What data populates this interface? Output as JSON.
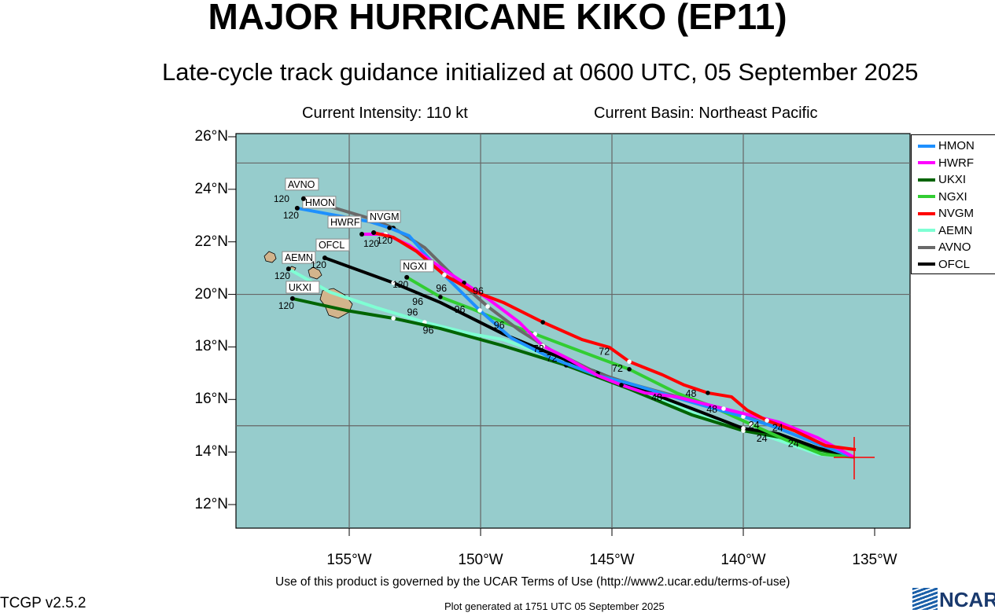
{
  "header": {
    "title": "MAJOR HURRICANE KIKO (EP11)",
    "subtitle": "Late-cycle track guidance initialized at 0600 UTC, 05 September 2025",
    "intensity": "Current Intensity: 110 kt",
    "basin": "Current Basin: Northeast Pacific"
  },
  "footer": {
    "terms": "Use of this product is governed by the UCAR Terms of Use (http://www2.ucar.edu/terms-of-use)",
    "version": "TCGP v2.5.2",
    "generated": "Plot generated at 1751 UTC   05 September 2025",
    "logo": "NCAR"
  },
  "chart_data": {
    "type": "line",
    "xlim_lon": [
      -159.3,
      -133.65
    ],
    "ylim_lat": [
      11.1,
      26.1
    ],
    "y_ticks": [
      "26°N",
      "24°N",
      "22°N",
      "20°N",
      "18°N",
      "16°N",
      "14°N",
      "12°N"
    ],
    "y_tick_values": [
      26,
      24,
      22,
      20,
      18,
      16,
      14,
      12
    ],
    "x_ticks": [
      "155°W",
      "150°W",
      "145°W",
      "140°W",
      "135°W"
    ],
    "x_tick_values": [
      155,
      150,
      145,
      140,
      135
    ],
    "grid_lon": [
      155,
      150,
      145,
      140
    ],
    "grid_lat": [
      25,
      20,
      15
    ],
    "current_position": [
      135.78,
      13.8
    ],
    "legend_position": "right",
    "series": [
      {
        "name": "HMON",
        "color": "#1e90ff",
        "end_label": "120",
        "points": [
          [
            135.78,
            13.8
          ],
          [
            137.16,
            14.3
          ],
          [
            138.65,
            14.9
          ],
          [
            140.0,
            15.35
          ],
          [
            141.95,
            15.89
          ],
          [
            144.34,
            16.61
          ],
          [
            145.54,
            16.91
          ],
          [
            147.34,
            17.59
          ],
          [
            148.83,
            18.34
          ],
          [
            150.03,
            19.39
          ],
          [
            151.53,
            20.88
          ],
          [
            152.72,
            22.23
          ],
          [
            153.47,
            22.53
          ],
          [
            154.22,
            22.77
          ],
          [
            156.98,
            23.28
          ]
        ]
      },
      {
        "name": "HWRF",
        "color": "#ff00ff",
        "end_label": "120",
        "points": [
          [
            135.78,
            13.8
          ],
          [
            137.16,
            14.54
          ],
          [
            138.65,
            15.14
          ],
          [
            140.75,
            15.65
          ],
          [
            142.54,
            16.1
          ],
          [
            143.74,
            16.25
          ],
          [
            144.64,
            16.55
          ],
          [
            145.54,
            16.91
          ],
          [
            146.74,
            17.59
          ],
          [
            147.63,
            18.04
          ],
          [
            148.53,
            18.94
          ],
          [
            149.73,
            19.84
          ],
          [
            150.63,
            20.44
          ],
          [
            151.53,
            21.03
          ],
          [
            152.72,
            21.87
          ],
          [
            153.62,
            22.29
          ],
          [
            154.52,
            22.29
          ]
        ]
      },
      {
        "name": "UKXI",
        "color": "#006400",
        "end_label": "120",
        "points": [
          [
            135.78,
            13.8
          ],
          [
            137.16,
            14.09
          ],
          [
            138.65,
            14.57
          ],
          [
            140.0,
            14.81
          ],
          [
            141.95,
            15.41
          ],
          [
            144.34,
            16.4
          ],
          [
            146.74,
            17.3
          ],
          [
            149.13,
            18.04
          ],
          [
            151.53,
            18.7
          ],
          [
            153.32,
            19.09
          ],
          [
            155.12,
            19.39
          ],
          [
            157.16,
            19.84
          ]
        ]
      },
      {
        "name": "NGXI",
        "color": "#32cd32",
        "end_label": "120",
        "points": [
          [
            135.78,
            13.8
          ],
          [
            137.01,
            13.92
          ],
          [
            138.35,
            14.45
          ],
          [
            139.7,
            15.05
          ],
          [
            141.35,
            15.8
          ],
          [
            142.54,
            16.25
          ],
          [
            144.34,
            17.15
          ],
          [
            145.54,
            17.59
          ],
          [
            146.74,
            18.04
          ],
          [
            147.93,
            18.49
          ],
          [
            149.13,
            18.94
          ],
          [
            150.33,
            19.45
          ],
          [
            151.53,
            19.9
          ],
          [
            152.81,
            20.65
          ]
        ]
      },
      {
        "name": "NVGM",
        "color": "#ff0000",
        "end_label": "120",
        "points": [
          [
            135.72,
            14.09
          ],
          [
            136.86,
            14.24
          ],
          [
            138.05,
            14.81
          ],
          [
            139.1,
            15.2
          ],
          [
            139.85,
            15.59
          ],
          [
            140.45,
            16.1
          ],
          [
            141.35,
            16.25
          ],
          [
            142.25,
            16.55
          ],
          [
            143.08,
            16.94
          ],
          [
            144.34,
            17.44
          ],
          [
            145.09,
            17.98
          ],
          [
            146.14,
            18.28
          ],
          [
            147.63,
            18.94
          ],
          [
            149.13,
            19.69
          ],
          [
            150.33,
            20.14
          ],
          [
            151.38,
            20.74
          ],
          [
            152.43,
            21.63
          ],
          [
            153.32,
            22.17
          ],
          [
            154.07,
            22.35
          ]
        ]
      },
      {
        "name": "AEMN",
        "color": "#7fffd4",
        "end_label": "120",
        "points": [
          [
            135.78,
            13.8
          ],
          [
            137.16,
            13.92
          ],
          [
            138.65,
            14.45
          ],
          [
            140.0,
            14.9
          ],
          [
            141.95,
            15.5
          ],
          [
            144.34,
            16.5
          ],
          [
            146.74,
            17.4
          ],
          [
            149.13,
            18.28
          ],
          [
            150.33,
            18.49
          ],
          [
            152.13,
            18.94
          ],
          [
            153.92,
            19.48
          ],
          [
            155.72,
            20.08
          ],
          [
            157.31,
            20.97
          ]
        ]
      },
      {
        "name": "AVNO",
        "color": "#696969",
        "end_label": "120",
        "points": [
          [
            135.78,
            13.8
          ],
          [
            137.16,
            14.3
          ],
          [
            138.65,
            14.9
          ],
          [
            140.0,
            15.4
          ],
          [
            141.95,
            15.95
          ],
          [
            144.34,
            16.61
          ],
          [
            145.54,
            17.0
          ],
          [
            147.34,
            17.89
          ],
          [
            148.53,
            18.64
          ],
          [
            149.73,
            19.54
          ],
          [
            150.93,
            20.59
          ],
          [
            152.13,
            21.78
          ],
          [
            153.32,
            22.53
          ],
          [
            154.22,
            22.89
          ],
          [
            156.74,
            23.64
          ]
        ]
      },
      {
        "name": "OFCL",
        "color": "#000000",
        "end_label": "120",
        "points": [
          [
            135.78,
            13.8
          ],
          [
            137.16,
            14.15
          ],
          [
            138.65,
            14.69
          ],
          [
            140.0,
            14.9
          ],
          [
            141.95,
            15.65
          ],
          [
            144.34,
            16.55
          ],
          [
            146.74,
            17.5
          ],
          [
            149.13,
            18.49
          ],
          [
            151.53,
            19.69
          ],
          [
            153.32,
            20.44
          ],
          [
            155.93,
            21.39
          ]
        ]
      }
    ],
    "hour_labels": [
      {
        "text": "96",
        "lon": 151.0,
        "lat": 19.3
      },
      {
        "text": "96",
        "lon": 151.7,
        "lat": 20.1
      },
      {
        "text": "96",
        "lon": 150.3,
        "lat": 20.0
      },
      {
        "text": "96",
        "lon": 152.6,
        "lat": 19.6
      },
      {
        "text": "96",
        "lon": 152.8,
        "lat": 19.2
      },
      {
        "text": "96",
        "lon": 152.2,
        "lat": 18.5
      },
      {
        "text": "96",
        "lon": 149.5,
        "lat": 18.7
      },
      {
        "text": "72",
        "lon": 148.0,
        "lat": 17.8
      },
      {
        "text": "72",
        "lon": 147.5,
        "lat": 17.45
      },
      {
        "text": "72",
        "lon": 145.5,
        "lat": 17.7
      },
      {
        "text": "72",
        "lon": 145.0,
        "lat": 17.05
      },
      {
        "text": "48",
        "lon": 143.5,
        "lat": 15.95
      },
      {
        "text": "48",
        "lon": 142.2,
        "lat": 16.1
      },
      {
        "text": "48",
        "lon": 141.4,
        "lat": 15.5
      },
      {
        "text": "24",
        "lon": 139.8,
        "lat": 14.9
      },
      {
        "text": "24",
        "lon": 138.9,
        "lat": 14.8
      },
      {
        "text": "24",
        "lon": 139.5,
        "lat": 14.4
      },
      {
        "text": "24",
        "lon": 138.3,
        "lat": 14.2
      }
    ]
  }
}
